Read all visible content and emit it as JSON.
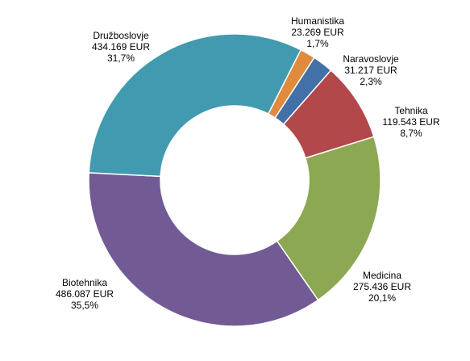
{
  "chart_data": {
    "type": "pie",
    "subtype": "doughnut",
    "title": "",
    "legend": "none",
    "slices": [
      {
        "label": "Humanistika",
        "value_text": "23.269 EUR",
        "percent_text": "1,7%",
        "value": 23269,
        "percent": 1.7,
        "color": "#DF8A3C"
      },
      {
        "label": "Naravoslovje",
        "value_text": "31.217 EUR",
        "percent_text": "2,3%",
        "value": 31217,
        "percent": 2.3,
        "color": "#4470A8"
      },
      {
        "label": "Tehnika",
        "value_text": "119.543 EUR",
        "percent_text": "8,7%",
        "value": 119543,
        "percent": 8.7,
        "color": "#B2484A"
      },
      {
        "label": "Medicina",
        "value_text": "275.436 EUR",
        "percent_text": "20,1%",
        "value": 275436,
        "percent": 20.1,
        "color": "#8CA852"
      },
      {
        "label": "Biotehnika",
        "value_text": "486.087 EUR",
        "percent_text": "35,5%",
        "value": 486087,
        "percent": 35.5,
        "color": "#725A94"
      },
      {
        "label": "Družboslovje",
        "value_text": "434.169 EUR",
        "percent_text": "31,7%",
        "value": 434169,
        "percent": 31.7,
        "color": "#419AAF"
      }
    ]
  }
}
